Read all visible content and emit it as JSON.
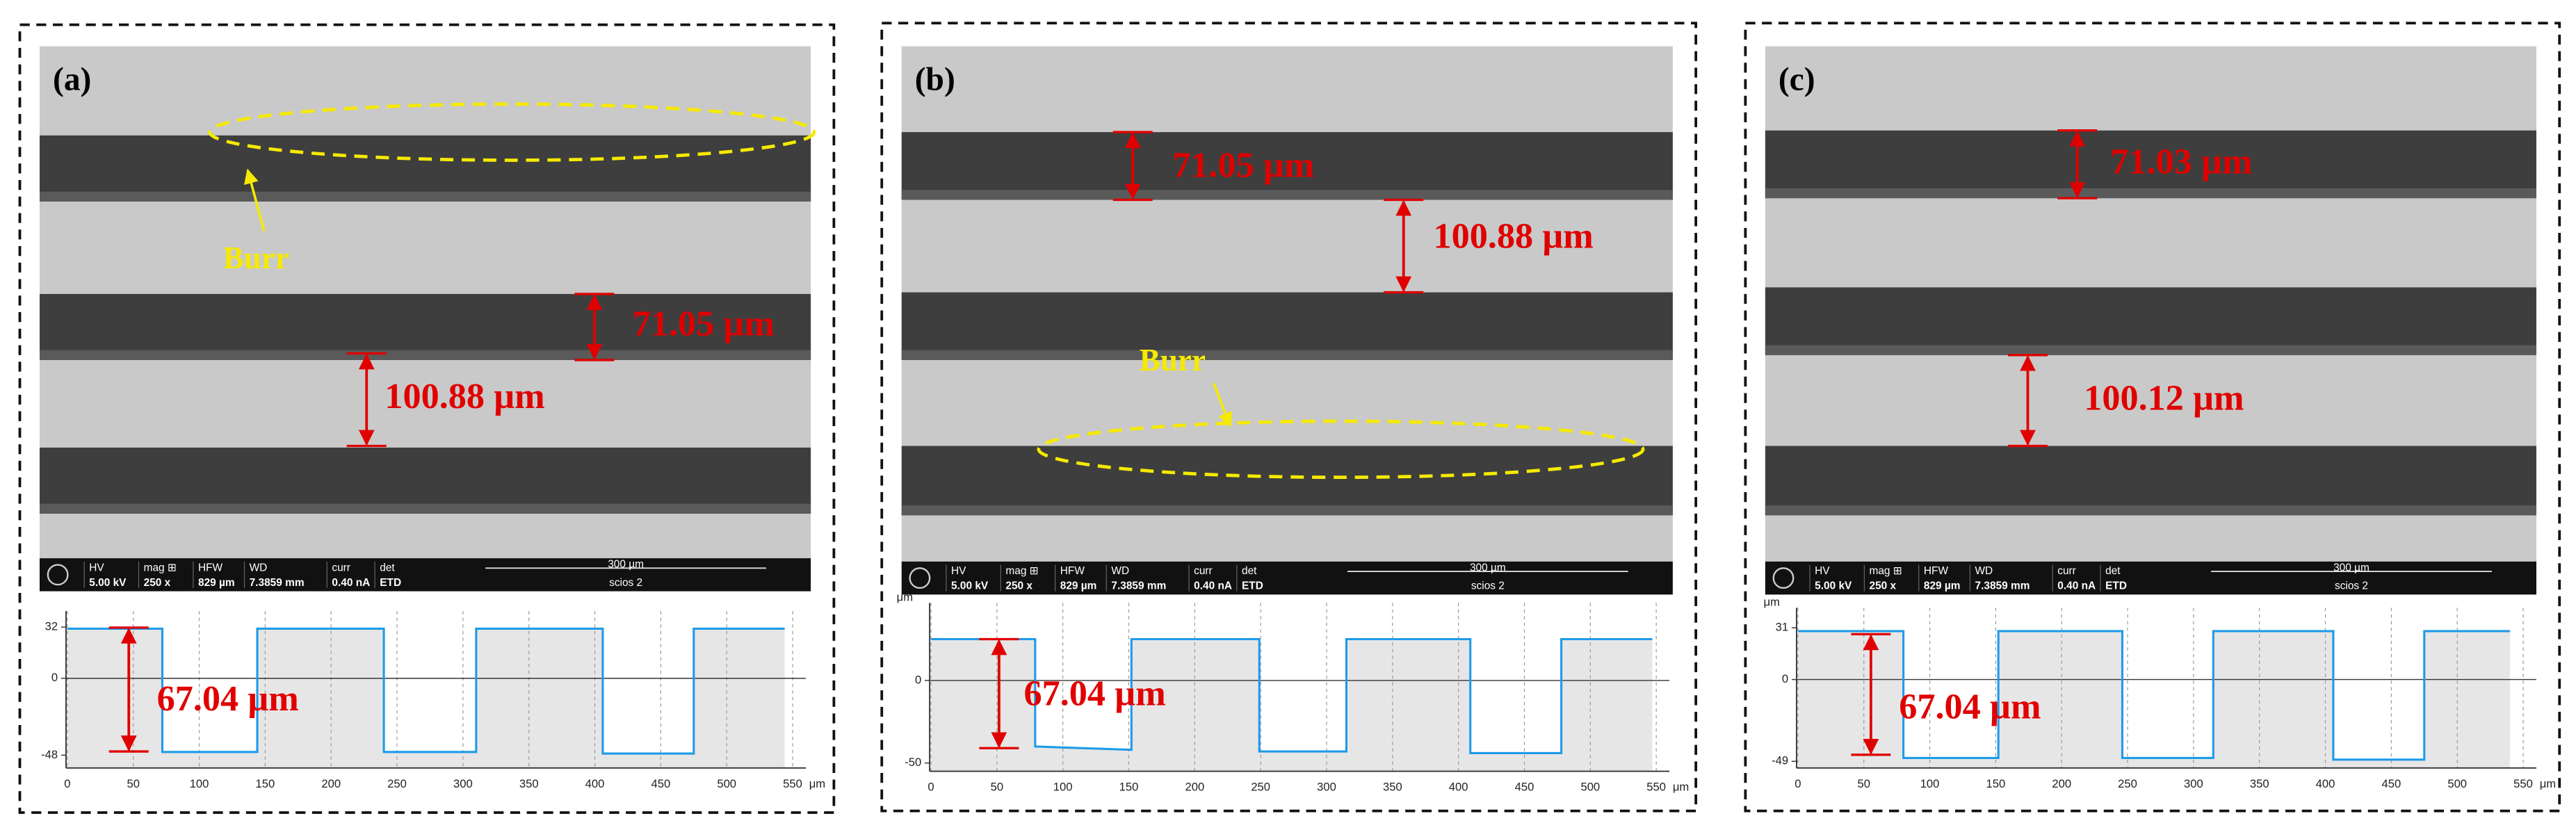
{
  "panels": [
    {
      "label": "(a)",
      "burr": "Burr",
      "annotations": [
        "71.05 µm",
        "100.88 µm"
      ],
      "profile_annotation": "67.04 µm",
      "info_bar": {
        "labels": [
          "HV",
          "mag ⊞",
          "HFW",
          "WD",
          "curr",
          "det"
        ],
        "values": [
          "5.00 kV",
          "250 x",
          "829 µm",
          "7.3859 mm",
          "0.40 nA",
          "ETD"
        ],
        "scale": "300 µm",
        "instrument": "scios 2"
      }
    },
    {
      "label": "(b)",
      "burr": "Burr",
      "annotations": [
        "71.05 µm",
        "100.88 µm"
      ],
      "profile_annotation": "67.04 µm",
      "info_bar": {
        "labels": [
          "HV",
          "mag ⊞",
          "HFW",
          "WD",
          "curr",
          "det"
        ],
        "values": [
          "5.00 kV",
          "250 x",
          "829 µm",
          "7.3859 mm",
          "0.40 nA",
          "ETD"
        ],
        "scale": "300 µm",
        "instrument": "scios 2"
      }
    },
    {
      "label": "(c)",
      "annotations": [
        "71.03 µm",
        "100.12 µm"
      ],
      "profile_annotation": "67.04 µm",
      "info_bar": {
        "labels": [
          "HV",
          "mag ⊞",
          "HFW",
          "WD",
          "curr",
          "det"
        ],
        "values": [
          "5.00 kV",
          "250 x",
          "829 µm",
          "7.3859 mm",
          "0.40 nA",
          "ETD"
        ],
        "scale": "300 µm",
        "instrument": "scios 2"
      }
    }
  ],
  "chart_data": [
    {
      "type": "line",
      "x_unit": "μm",
      "color": "#1e9be8",
      "x": [
        0,
        72,
        72,
        144,
        144,
        240,
        240,
        310,
        310,
        406,
        406,
        475,
        475,
        544
      ],
      "values": [
        31,
        31,
        -46,
        -46,
        31,
        31,
        -46,
        -46,
        31,
        31,
        -47,
        -47,
        31,
        31
      ],
      "xlim": [
        -1,
        560
      ],
      "xticks": [
        0,
        50,
        100,
        150,
        200,
        250,
        300,
        350,
        400,
        450,
        500,
        550
      ],
      "ylim": [
        -56,
        42
      ],
      "yticks": [
        32,
        0,
        -48
      ]
    },
    {
      "type": "line",
      "x_unit": "μm",
      "y_unit": "μm",
      "color": "#1e9be8",
      "x": [
        0,
        79,
        79,
        152,
        152,
        249,
        249,
        315,
        315,
        409,
        409,
        478,
        478,
        547
      ],
      "values": [
        25,
        25,
        -40,
        -42,
        25,
        25,
        -43,
        -43,
        25,
        25,
        -44,
        -44,
        25,
        25
      ],
      "xlim": [
        -1,
        560
      ],
      "xticks": [
        0,
        50,
        100,
        150,
        200,
        250,
        300,
        350,
        400,
        450,
        500,
        550
      ],
      "ylim": [
        -55,
        47
      ],
      "yticks": [
        0,
        -50
      ]
    },
    {
      "type": "line",
      "x_unit": "μm",
      "y_unit": "μm",
      "color": "#1e9be8",
      "x": [
        0,
        80,
        80,
        152,
        152,
        246,
        246,
        315,
        315,
        406,
        406,
        475,
        475,
        540
      ],
      "values": [
        29,
        29,
        -47,
        -47,
        29,
        29,
        -47,
        -47,
        29,
        29,
        -48,
        -48,
        29,
        29
      ],
      "xlim": [
        -1,
        560
      ],
      "xticks": [
        0,
        50,
        100,
        150,
        200,
        250,
        300,
        350,
        400,
        450,
        500,
        550
      ],
      "ylim": [
        -53,
        43
      ],
      "yticks": [
        31,
        0,
        -49
      ]
    }
  ]
}
